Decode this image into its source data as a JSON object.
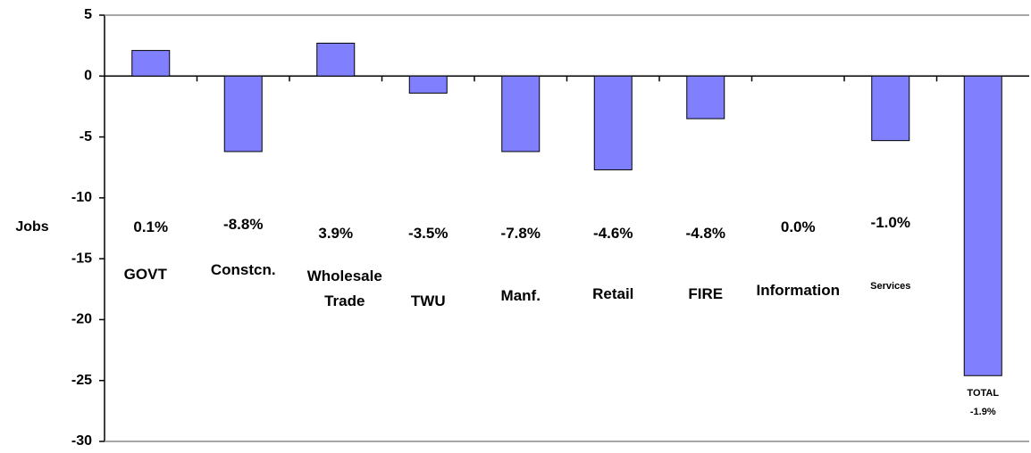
{
  "chart_data": {
    "type": "bar",
    "y_label": "Jobs",
    "categories": [
      "GOVT",
      "Constcn.",
      "Wholesale Trade",
      "TWU",
      "Manf.",
      "Retail",
      "FIRE",
      "Information",
      "Services",
      "TOTAL"
    ],
    "values": [
      2.1,
      -6.2,
      2.7,
      -1.4,
      -6.2,
      -7.7,
      -3.5,
      0,
      -5.3,
      -24.6
    ],
    "annotations": [
      "0.1%",
      "-8.8%",
      "3.9%",
      "-3.5%",
      "-7.8%",
      "-4.6%",
      "-4.8%",
      "0.0%",
      "-1.0%",
      "-1.9%"
    ],
    "color": "#8080ff",
    "ylim": [
      -30,
      5
    ],
    "yticks": [
      -30,
      -25,
      -20,
      -15,
      -10,
      -5,
      0,
      5
    ],
    "grid": false
  }
}
